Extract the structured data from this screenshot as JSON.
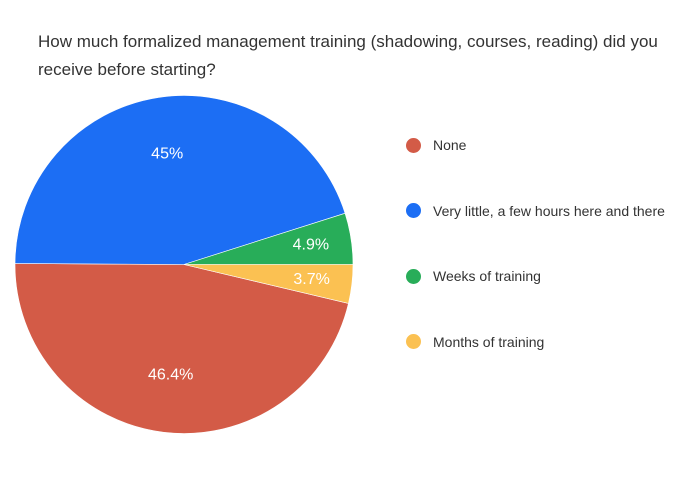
{
  "chart_data": {
    "type": "pie",
    "title": "How much formalized management training (shadowing, courses, reading) did you receive before starting?",
    "slices": [
      {
        "label": "None",
        "value": 46.4,
        "display": "46.4%",
        "color": "#d35b47"
      },
      {
        "label": "Very little, a few hours here and there",
        "value": 45,
        "display": "45%",
        "color": "#1c6ef4"
      },
      {
        "label": "Weeks of training",
        "value": 4.9,
        "display": "4.9%",
        "color": "#28ad59"
      },
      {
        "label": "Months of training",
        "value": 3.7,
        "display": "3.7%",
        "color": "#fbc152"
      }
    ],
    "legend_position": "right"
  }
}
